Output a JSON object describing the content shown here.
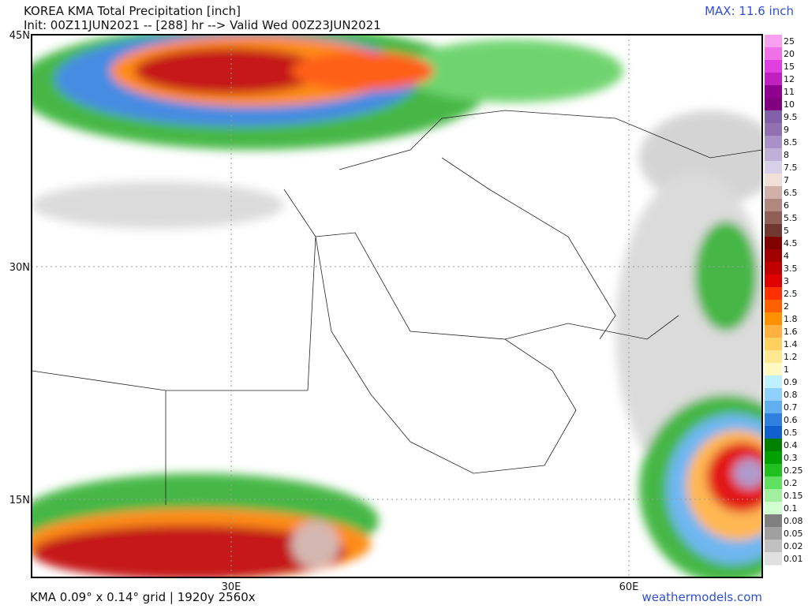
{
  "header": {
    "title": "KOREA KMA Total Precipitation [inch]",
    "init": "Init: 00Z11JUN2021 -- [288] hr --> Valid Wed 00Z23JUN2021",
    "max": "MAX: 11.6 inch"
  },
  "map": {
    "lat_labels": [
      "45N",
      "30N",
      "15N"
    ],
    "lon_labels": [
      "30E",
      "60E"
    ]
  },
  "colorbar": {
    "levels": [
      {
        "label": "25",
        "color": "#f7a0f0"
      },
      {
        "label": "20",
        "color": "#f070e8"
      },
      {
        "label": "15",
        "color": "#e040e0"
      },
      {
        "label": "12",
        "color": "#c020c0"
      },
      {
        "label": "11",
        "color": "#900090"
      },
      {
        "label": "10",
        "color": "#800080"
      },
      {
        "label": "9.5",
        "color": "#8060a8"
      },
      {
        "label": "9",
        "color": "#9070b0"
      },
      {
        "label": "8.5",
        "color": "#a890c8"
      },
      {
        "label": "8",
        "color": "#c0b0d8"
      },
      {
        "label": "7.5",
        "color": "#d8d0e8"
      },
      {
        "label": "7",
        "color": "#f0e0d8"
      },
      {
        "label": "6.5",
        "color": "#d0b0a8"
      },
      {
        "label": "6",
        "color": "#b08880"
      },
      {
        "label": "5.5",
        "color": "#906058"
      },
      {
        "label": "5",
        "color": "#703830"
      },
      {
        "label": "4.5",
        "color": "#800000"
      },
      {
        "label": "4",
        "color": "#a00000"
      },
      {
        "label": "3.5",
        "color": "#c00000"
      },
      {
        "label": "3",
        "color": "#e00000"
      },
      {
        "label": "2.5",
        "color": "#ff3000"
      },
      {
        "label": "2",
        "color": "#ff6000"
      },
      {
        "label": "1.8",
        "color": "#ff9000"
      },
      {
        "label": "1.6",
        "color": "#ffb040"
      },
      {
        "label": "1.4",
        "color": "#ffd060"
      },
      {
        "label": "1.2",
        "color": "#ffe890"
      },
      {
        "label": "1",
        "color": "#fff8c0"
      },
      {
        "label": "0.9",
        "color": "#c0f0ff"
      },
      {
        "label": "0.8",
        "color": "#90d0ff"
      },
      {
        "label": "0.7",
        "color": "#60b0f0"
      },
      {
        "label": "0.6",
        "color": "#3080e0"
      },
      {
        "label": "0.5",
        "color": "#1060d0"
      },
      {
        "label": "0.4",
        "color": "#008000"
      },
      {
        "label": "0.3",
        "color": "#00a000"
      },
      {
        "label": "0.25",
        "color": "#20c020"
      },
      {
        "label": "0.2",
        "color": "#60e060"
      },
      {
        "label": "0.15",
        "color": "#a0f0a0"
      },
      {
        "label": "0.1",
        "color": "#d0ffd0"
      },
      {
        "label": "0.08",
        "color": "#808080"
      },
      {
        "label": "0.05",
        "color": "#a0a0a0"
      },
      {
        "label": "0.02",
        "color": "#c0c0c0"
      },
      {
        "label": "0.01",
        "color": "#e0e0e0"
      }
    ]
  },
  "footer": {
    "grid": "KMA 0.09° x 0.14° grid | 1920y 2560x",
    "source": "weathermodels.com"
  }
}
